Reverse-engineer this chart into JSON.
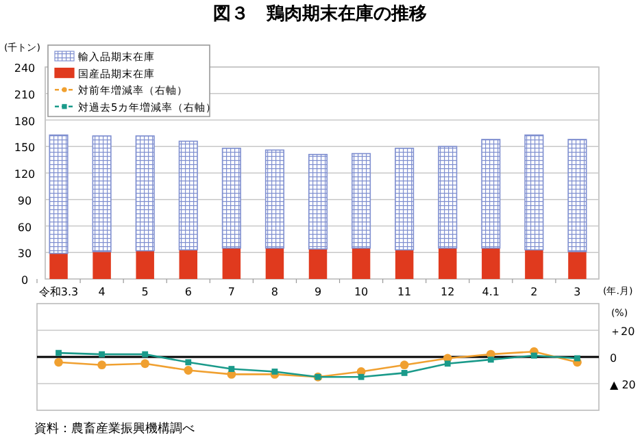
{
  "chart_data": [
    {
      "type": "bar",
      "stacked": true,
      "title": "図３　鶏肉期末在庫の推移",
      "xlabel": "(年.月)",
      "ylabel": "(千トン)",
      "categories": [
        "令和3.3",
        "4",
        "5",
        "6",
        "7",
        "8",
        "9",
        "10",
        "11",
        "12",
        "4.1",
        "2",
        "3"
      ],
      "series": [
        {
          "name": "国産品期末在庫",
          "color": "#e03a1e",
          "values": [
            29,
            31,
            32,
            33,
            35,
            35,
            34,
            35,
            33,
            35,
            35,
            33,
            31
          ]
        },
        {
          "name": "輸入品期末在庫",
          "color": "#7f8fd0",
          "values": [
            134,
            131,
            130,
            123,
            113,
            111,
            107,
            107,
            115,
            115,
            123,
            130,
            127
          ]
        }
      ],
      "ylim": [
        0,
        240
      ],
      "yticks": [
        0,
        30,
        60,
        90,
        120,
        150,
        180,
        210,
        240
      ],
      "grid": "y",
      "legend": "top left",
      "annotations": [
        "資料：農畜産業振興機構調べ"
      ]
    },
    {
      "type": "line",
      "ylabel": "(%)",
      "tick_labels": "y",
      "categories": [
        null,
        null,
        null,
        null,
        null,
        null,
        null,
        null,
        null,
        null,
        null,
        null,
        null
      ],
      "series": [
        {
          "name": "対前年増減率（右軸）",
          "color": "#f0a030",
          "marker": "circle",
          "values": [
            -4,
            -6,
            -5,
            -10,
            -13,
            -13,
            -15,
            -11,
            -6,
            -1,
            2,
            4,
            -4
          ]
        },
        {
          "name": "対過去5カ年増減率（右軸）",
          "color": "#1a9a8a",
          "marker": "square",
          "values": [
            3,
            2,
            2,
            -4,
            -9,
            -11,
            -15,
            -15,
            -12,
            -5,
            -2,
            1,
            -1
          ]
        }
      ],
      "ylim": [
        -40,
        40
      ],
      "yticks": [
        {
          "value": 20,
          "label": "＋20"
        },
        0,
        {
          "value": -20,
          "label": "▲ 20"
        }
      ],
      "ref_lines": [
        {
          "axis": "y",
          "value": 0,
          "color": "#000000"
        }
      ],
      "grid": "y",
      "legend": "top"
    }
  ]
}
